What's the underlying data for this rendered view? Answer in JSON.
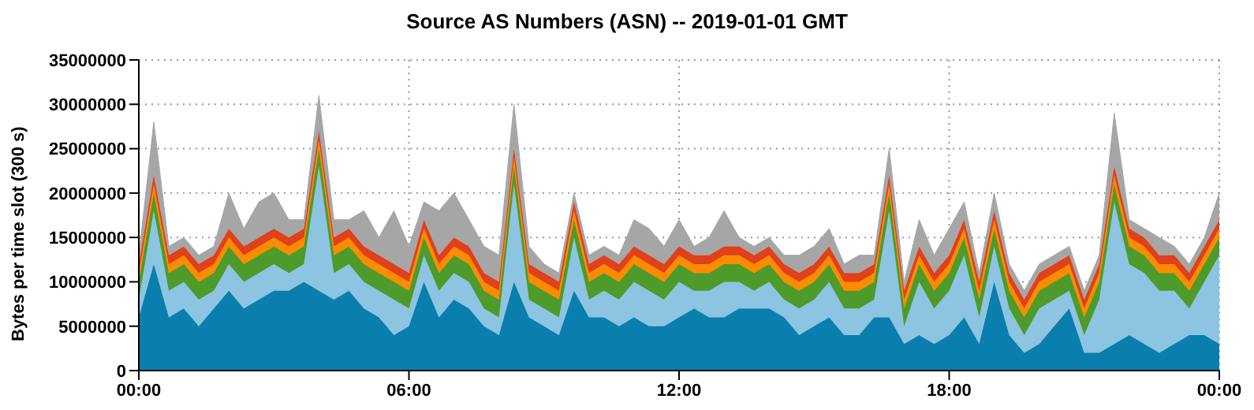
{
  "chart_data": {
    "type": "area",
    "stacked": true,
    "title": "Source AS Numbers (ASN) -- 2019-01-01 GMT",
    "ylabel": "Bytes per time slot (300 s)",
    "x": [
      0,
      0.333,
      0.667,
      1,
      1.333,
      1.667,
      2,
      2.333,
      2.667,
      3,
      3.333,
      3.667,
      4,
      4.333,
      4.667,
      5,
      5.333,
      5.667,
      6,
      6.333,
      6.667,
      7,
      7.333,
      7.667,
      8,
      8.333,
      8.667,
      9,
      9.333,
      9.667,
      10,
      10.333,
      10.667,
      11,
      11.333,
      11.667,
      12,
      12.333,
      12.667,
      13,
      13.333,
      13.667,
      14,
      14.333,
      14.667,
      15,
      15.333,
      15.667,
      16,
      16.333,
      16.667,
      17,
      17.333,
      17.667,
      18,
      18.333,
      18.667,
      19,
      19.333,
      19.667,
      20,
      20.333,
      20.667,
      21,
      21.333,
      21.667,
      22,
      22.333,
      22.667,
      23,
      23.333,
      23.667,
      24
    ],
    "xlim": [
      0,
      24
    ],
    "xticks": [
      {
        "value": 0,
        "label": "00:00"
      },
      {
        "value": 6,
        "label": "06:00"
      },
      {
        "value": 12,
        "label": "12:00"
      },
      {
        "value": 18,
        "label": "18:00"
      },
      {
        "value": 24,
        "label": "00:00"
      }
    ],
    "ylim": [
      0,
      35000000
    ],
    "yticks": [
      0,
      5000000,
      10000000,
      15000000,
      20000000,
      25000000,
      30000000,
      35000000
    ],
    "grid": true,
    "legend": false,
    "series": [
      {
        "color": "#0a7fad",
        "values": [
          6000000,
          12000000,
          6000000,
          7000000,
          5000000,
          7000000,
          9000000,
          7000000,
          8000000,
          9000000,
          9000000,
          10000000,
          9000000,
          8000000,
          9000000,
          7000000,
          6000000,
          4000000,
          5000000,
          10000000,
          6000000,
          8000000,
          7000000,
          5000000,
          4000000,
          10000000,
          6000000,
          5000000,
          4000000,
          9000000,
          6000000,
          6000000,
          5000000,
          6000000,
          5000000,
          5000000,
          6000000,
          7000000,
          6000000,
          6000000,
          7000000,
          7000000,
          7000000,
          6000000,
          4000000,
          5000000,
          6000000,
          4000000,
          4000000,
          6000000,
          6000000,
          3000000,
          4000000,
          3000000,
          4000000,
          6000000,
          3000000,
          10000000,
          4000000,
          2000000,
          3000000,
          5000000,
          7000000,
          2000000,
          2000000,
          3000000,
          4000000,
          3000000,
          2000000,
          3000000,
          4000000,
          4000000,
          3000000
        ]
      },
      {
        "color": "#8cc4e2",
        "values": [
          2000000,
          6000000,
          3000000,
          3000000,
          3000000,
          2000000,
          3000000,
          3000000,
          3000000,
          3000000,
          2000000,
          2000000,
          14000000,
          3000000,
          3000000,
          3000000,
          3000000,
          4000000,
          2000000,
          3000000,
          3000000,
          3000000,
          3000000,
          2000000,
          2000000,
          11000000,
          2000000,
          2000000,
          2000000,
          6000000,
          2000000,
          3000000,
          3000000,
          4000000,
          4000000,
          3000000,
          4000000,
          2000000,
          3000000,
          4000000,
          3000000,
          2000000,
          3000000,
          2000000,
          3000000,
          3000000,
          4000000,
          3000000,
          3000000,
          2000000,
          12000000,
          2000000,
          6000000,
          4000000,
          5000000,
          7000000,
          3000000,
          4000000,
          3000000,
          2000000,
          4000000,
          3000000,
          2000000,
          2000000,
          6000000,
          16000000,
          8000000,
          8000000,
          7000000,
          6000000,
          3000000,
          6000000,
          10000000
        ]
      },
      {
        "color": "#4e9a2a",
        "values": [
          2000000,
          2000000,
          2000000,
          2000000,
          2000000,
          2000000,
          2000000,
          2000000,
          2000000,
          2000000,
          2000000,
          2000000,
          2000000,
          2000000,
          2000000,
          2000000,
          2000000,
          2000000,
          2000000,
          2000000,
          2000000,
          2000000,
          2000000,
          2000000,
          2000000,
          2000000,
          2000000,
          2000000,
          2000000,
          2000000,
          2000000,
          2000000,
          2000000,
          2000000,
          2000000,
          2000000,
          2000000,
          2000000,
          2000000,
          2000000,
          2000000,
          2000000,
          2000000,
          2000000,
          2000000,
          2000000,
          2000000,
          2000000,
          2000000,
          2000000,
          2000000,
          2000000,
          2000000,
          2000000,
          2000000,
          2000000,
          2000000,
          2000000,
          2000000,
          2000000,
          2000000,
          2000000,
          2000000,
          2000000,
          2000000,
          2000000,
          2000000,
          2000000,
          2000000,
          2000000,
          2000000,
          2000000,
          2000000
        ]
      },
      {
        "color": "#ff8c00",
        "values": [
          1000000,
          1000000,
          1000000,
          1000000,
          1000000,
          1000000,
          1000000,
          1000000,
          1000000,
          1000000,
          1000000,
          1000000,
          1000000,
          1000000,
          1000000,
          1000000,
          1000000,
          1000000,
          1000000,
          1000000,
          1000000,
          1000000,
          1000000,
          1000000,
          1000000,
          1000000,
          1000000,
          1000000,
          1000000,
          1000000,
          1000000,
          1000000,
          1000000,
          1000000,
          1000000,
          1000000,
          1000000,
          1000000,
          1000000,
          1000000,
          1000000,
          1000000,
          1000000,
          1000000,
          1000000,
          1000000,
          1000000,
          1000000,
          1000000,
          1000000,
          1000000,
          1000000,
          1000000,
          1000000,
          1000000,
          1000000,
          1000000,
          1000000,
          1000000,
          1000000,
          1000000,
          1000000,
          1000000,
          1000000,
          1000000,
          1000000,
          1000000,
          1000000,
          1000000,
          1000000,
          1000000,
          1000000,
          1000000
        ]
      },
      {
        "color": "#e0401a",
        "values": [
          1000000,
          1000000,
          1000000,
          1000000,
          1000000,
          1000000,
          1000000,
          1000000,
          1000000,
          1000000,
          1000000,
          1000000,
          1000000,
          1000000,
          1000000,
          1000000,
          1000000,
          1000000,
          1000000,
          1000000,
          1000000,
          1000000,
          1000000,
          1000000,
          1000000,
          1000000,
          1000000,
          1000000,
          1000000,
          1000000,
          1000000,
          1000000,
          1000000,
          1000000,
          1000000,
          1000000,
          1000000,
          1000000,
          1000000,
          1000000,
          1000000,
          1000000,
          1000000,
          1000000,
          1000000,
          1000000,
          1000000,
          1000000,
          1000000,
          1000000,
          1000000,
          1000000,
          1000000,
          1000000,
          1000000,
          1000000,
          1000000,
          1000000,
          1000000,
          1000000,
          1000000,
          1000000,
          1000000,
          1000000,
          1000000,
          1000000,
          1000000,
          1000000,
          1000000,
          1000000,
          1000000,
          1000000,
          1000000
        ]
      },
      {
        "color": "#a6a6a6",
        "values": [
          1000000,
          6000000,
          1000000,
          1000000,
          1000000,
          1000000,
          4000000,
          2000000,
          4000000,
          4000000,
          2000000,
          1000000,
          4000000,
          2000000,
          1000000,
          4000000,
          2000000,
          6000000,
          3000000,
          2000000,
          5000000,
          5000000,
          3000000,
          3000000,
          3000000,
          5000000,
          2000000,
          1000000,
          1000000,
          1000000,
          1000000,
          1000000,
          1000000,
          3000000,
          3000000,
          2000000,
          3000000,
          1000000,
          2000000,
          4000000,
          1000000,
          1000000,
          1000000,
          1000000,
          2000000,
          2000000,
          2000000,
          1000000,
          2000000,
          1000000,
          3000000,
          1000000,
          3000000,
          2000000,
          3000000,
          2000000,
          1000000,
          2000000,
          1000000,
          1000000,
          1000000,
          1000000,
          1000000,
          1000000,
          1000000,
          6000000,
          1000000,
          1000000,
          2000000,
          1000000,
          1000000,
          1000000,
          3000000
        ]
      }
    ]
  }
}
